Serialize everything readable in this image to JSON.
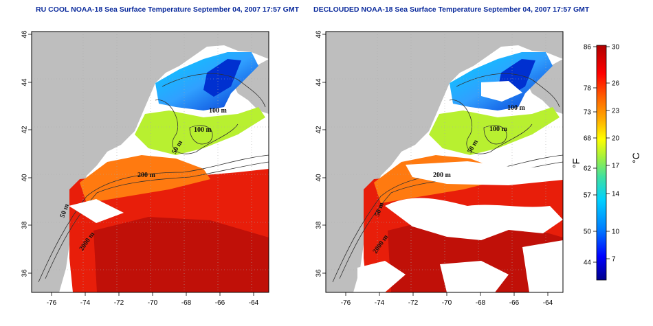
{
  "panels": [
    {
      "title": "RU COOL NOAA-18 Sea Surface Temperature September 04, 2007 17:57 GMT",
      "contour_labels": [
        "100 m",
        "100 m",
        "50 m",
        "200 m",
        "50 m",
        "2000 m"
      ]
    },
    {
      "title": "DECLOUDED NOAA-18 Sea Surface Temperature September 04, 2007 17:57 GMT",
      "contour_labels": [
        "100 m",
        "100 m",
        "50 m",
        "200 m",
        "50 m",
        "2000 m"
      ]
    }
  ],
  "axes": {
    "x_ticks": [
      "-76",
      "-74",
      "-72",
      "-70",
      "-68",
      "-66",
      "-64"
    ],
    "y_ticks": [
      "36",
      "38",
      "40",
      "42",
      "44",
      "46"
    ]
  },
  "colorbar": {
    "fahrenheit_ticks": [
      "86",
      "78",
      "73",
      "68",
      "62",
      "57",
      "50",
      "44"
    ],
    "celsius_ticks": [
      "30",
      "26",
      "23",
      "20",
      "17",
      "14",
      "10",
      "7"
    ],
    "fahrenheit_unit": "°F",
    "celsius_unit": "°C",
    "colors": [
      "#00008b",
      "#0000ff",
      "#0080ff",
      "#00d0ff",
      "#40e0a0",
      "#a0f040",
      "#ffff00",
      "#ffb000",
      "#ff6000",
      "#ff0000",
      "#b00000"
    ]
  },
  "colors": {
    "land": "#bebebe",
    "title": "#0a2a9c",
    "no_data": "#ffffff"
  }
}
